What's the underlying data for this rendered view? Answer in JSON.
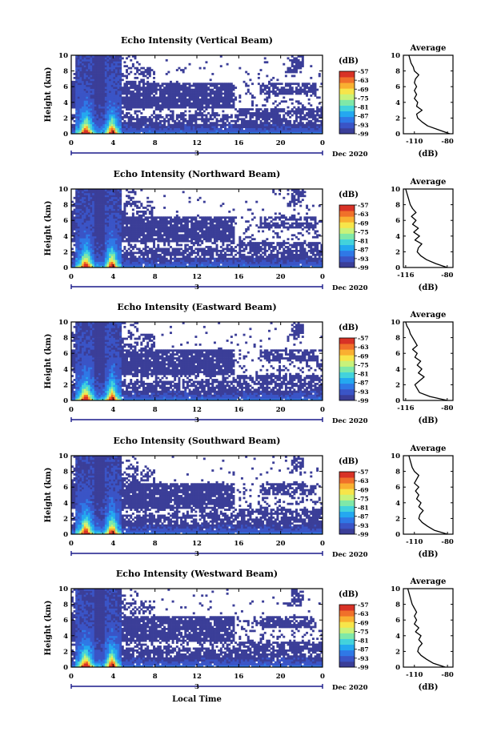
{
  "figure": {
    "xlabel": "Local Time",
    "date_label": "Dec 2020",
    "day_label": "3",
    "avg_title": "Average",
    "colorbar_unit": "(dB)",
    "colors": {
      "empty": "#ffffff",
      "scale": [
        "#3b3e98",
        "#3a54c6",
        "#2f78e6",
        "#24a8f0",
        "#43d3dc",
        "#7fe8a8",
        "#c9f27a",
        "#f7e54a",
        "#f9b031",
        "#f0702a",
        "#d83226"
      ]
    }
  },
  "chart_data": [
    {
      "type": "heatmap",
      "title": "Echo Intensity (Vertical Beam)",
      "xlabel": "",
      "ylabel": "Height (km)",
      "xlim": [
        0,
        24
      ],
      "ylim": [
        0,
        10
      ],
      "xticks": [
        "0",
        "4",
        "8",
        "12",
        "16",
        "20",
        "0"
      ],
      "yticks": [
        "0",
        "2",
        "4",
        "6",
        "8",
        "10"
      ],
      "colorbar_ticks": [
        "-57",
        "-63",
        "-69",
        "-75",
        "-81",
        "-87",
        "-93",
        "-99"
      ],
      "colorbar_range": [
        -99,
        -57
      ],
      "profile": {
        "xticks": [
          "-110",
          "-80"
        ],
        "xlim": [
          -120,
          -75
        ],
        "xlabel": "(dB)",
        "heights": [
          0,
          0.5,
          1,
          1.5,
          2,
          2.5,
          3,
          3.5,
          4,
          4.5,
          5,
          5.5,
          6,
          6.5,
          7,
          7.5,
          8,
          8.5,
          9,
          9.5,
          10
        ],
        "values": [
          -78,
          -88,
          -98,
          -103,
          -107,
          -108,
          -103,
          -108,
          -107,
          -110,
          -108,
          -110,
          -108,
          -110,
          -109,
          -106,
          -110,
          -111,
          -113,
          -114,
          -115
        ]
      }
    },
    {
      "type": "heatmap",
      "title": "Echo Intensity (Northward Beam)",
      "xlabel": "",
      "ylabel": "Height (km)",
      "xlim": [
        0,
        24
      ],
      "ylim": [
        0,
        10
      ],
      "xticks": [
        "0",
        "4",
        "8",
        "12",
        "16",
        "20",
        "0"
      ],
      "yticks": [
        "0",
        "2",
        "4",
        "6",
        "8",
        "10"
      ],
      "colorbar_ticks": [
        "-57",
        "-63",
        "-69",
        "-75",
        "-81",
        "-87",
        "-93",
        "-99"
      ],
      "colorbar_range": [
        -99,
        -57
      ],
      "profile": {
        "xticks": [
          "-116",
          "-80"
        ],
        "xlim": [
          -118,
          -75
        ],
        "xlabel": "(dB)",
        "heights": [
          0,
          0.5,
          1,
          1.5,
          2,
          2.5,
          3,
          3.5,
          4,
          4.5,
          5,
          5.5,
          6,
          6.5,
          7,
          7.5,
          8,
          8.5,
          9,
          9.5,
          10
        ],
        "values": [
          -80,
          -90,
          -98,
          -103,
          -106,
          -105,
          -102,
          -108,
          -104,
          -109,
          -105,
          -110,
          -107,
          -111,
          -107,
          -110,
          -112,
          -113,
          -114,
          -115,
          -116
        ]
      }
    },
    {
      "type": "heatmap",
      "title": "Echo Intensity (Eastward Beam)",
      "xlabel": "",
      "ylabel": "Height (km)",
      "xlim": [
        0,
        24
      ],
      "ylim": [
        0,
        10
      ],
      "xticks": [
        "0",
        "4",
        "8",
        "12",
        "16",
        "20",
        "0"
      ],
      "yticks": [
        "0",
        "2",
        "4",
        "6",
        "8",
        "10"
      ],
      "colorbar_ticks": [
        "-57",
        "-63",
        "-69",
        "-75",
        "-81",
        "-87",
        "-93",
        "-99"
      ],
      "colorbar_range": [
        -99,
        -57
      ],
      "profile": {
        "xticks": [
          "-116",
          "-80"
        ],
        "xlim": [
          -118,
          -75
        ],
        "xlabel": "(dB)",
        "heights": [
          0,
          0.5,
          1,
          1.5,
          2,
          2.5,
          3,
          3.5,
          4,
          4.5,
          5,
          5.5,
          6,
          6.5,
          7,
          7.5,
          8,
          8.5,
          9,
          9.5,
          10
        ],
        "values": [
          -80,
          -95,
          -104,
          -106,
          -108,
          -104,
          -100,
          -105,
          -102,
          -106,
          -103,
          -108,
          -106,
          -110,
          -106,
          -108,
          -110,
          -112,
          -113,
          -115,
          -116
        ]
      }
    },
    {
      "type": "heatmap",
      "title": "Echo Intensity (Southward Beam)",
      "xlabel": "",
      "ylabel": "Height (km)",
      "xlim": [
        0,
        24
      ],
      "ylim": [
        0,
        10
      ],
      "xticks": [
        "0",
        "4",
        "8",
        "12",
        "16",
        "20",
        "0"
      ],
      "yticks": [
        "0",
        "2",
        "4",
        "6",
        "8",
        "10"
      ],
      "colorbar_ticks": [
        "-57",
        "-63",
        "-69",
        "-75",
        "-81",
        "-87",
        "-93",
        "-99"
      ],
      "colorbar_range": [
        -99,
        -57
      ],
      "profile": {
        "xticks": [
          "-110",
          "-80"
        ],
        "xlim": [
          -120,
          -75
        ],
        "xlabel": "(dB)",
        "heights": [
          0,
          0.5,
          1,
          1.5,
          2,
          2.5,
          3,
          3.5,
          4,
          4.5,
          5,
          5.5,
          6,
          6.5,
          7,
          7.5,
          8,
          8.5,
          9,
          9.5,
          10
        ],
        "values": [
          -80,
          -92,
          -98,
          -103,
          -106,
          -105,
          -102,
          -106,
          -104,
          -108,
          -106,
          -109,
          -106,
          -110,
          -108,
          -106,
          -110,
          -112,
          -113,
          -114,
          -115
        ]
      }
    },
    {
      "type": "heatmap",
      "title": "Echo Intensity (Westward Beam)",
      "xlabel": "Local Time",
      "ylabel": "Height (km)",
      "xlim": [
        0,
        24
      ],
      "ylim": [
        0,
        10
      ],
      "xticks": [
        "0",
        "4",
        "8",
        "12",
        "16",
        "20",
        "0"
      ],
      "yticks": [
        "0",
        "2",
        "4",
        "6",
        "8",
        "10"
      ],
      "colorbar_ticks": [
        "-57",
        "-63",
        "-69",
        "-75",
        "-81",
        "-87",
        "-93",
        "-99"
      ],
      "colorbar_range": [
        -99,
        -57
      ],
      "profile": {
        "xticks": [
          "-110",
          "-80"
        ],
        "xlim": [
          -120,
          -75
        ],
        "xlabel": "(dB)",
        "heights": [
          0,
          0.5,
          1,
          1.5,
          2,
          2.5,
          3,
          3.5,
          4,
          4.5,
          5,
          5.5,
          6,
          6.5,
          7,
          7.5,
          8,
          8.5,
          9,
          9.5,
          10
        ],
        "values": [
          -82,
          -93,
          -99,
          -104,
          -107,
          -106,
          -103,
          -106,
          -104,
          -109,
          -106,
          -110,
          -108,
          -110,
          -108,
          -110,
          -112,
          -113,
          -114,
          -115,
          -116
        ]
      }
    }
  ]
}
